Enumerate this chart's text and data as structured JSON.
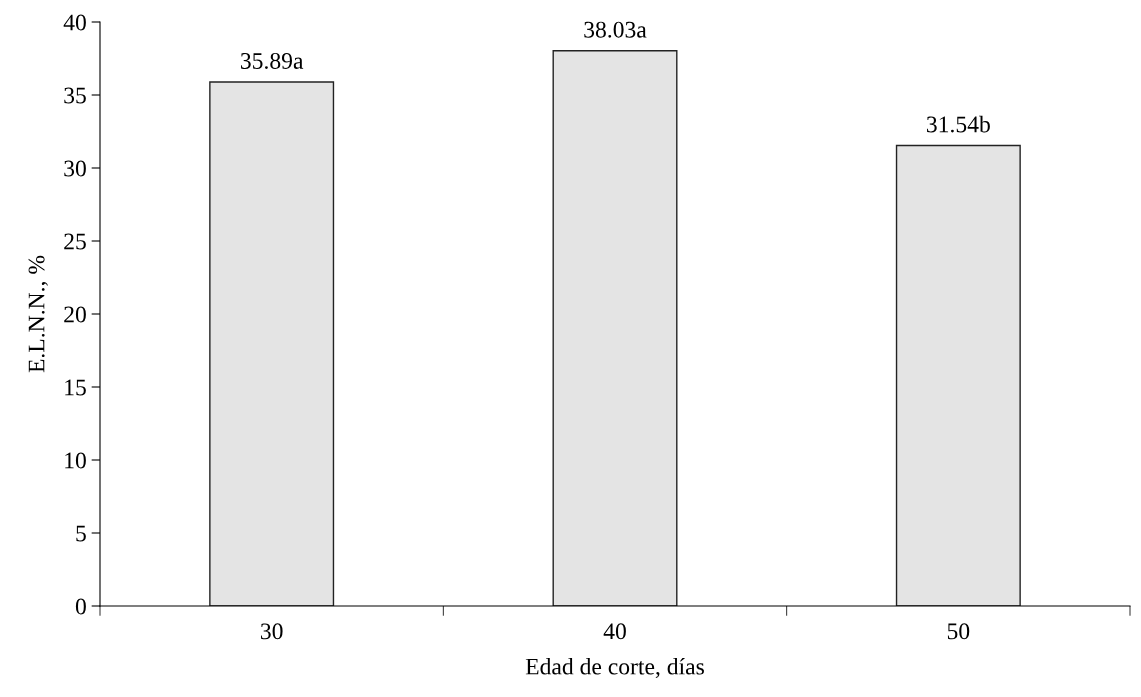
{
  "chart_data": {
    "type": "bar",
    "xlabel": "Edad de corte, días",
    "ylabel": "E.L.N.N., %",
    "categories": [
      "30",
      "40",
      "50"
    ],
    "values": [
      35.89,
      38.03,
      31.54
    ],
    "value_labels": [
      "35.89a",
      "38.03a",
      "31.54b"
    ],
    "color": "#e4e4e4",
    "ylim": [
      0,
      40
    ],
    "yticks": [
      0,
      5,
      10,
      15,
      20,
      25,
      30,
      35,
      40
    ],
    "grid": false,
    "legend": false
  }
}
